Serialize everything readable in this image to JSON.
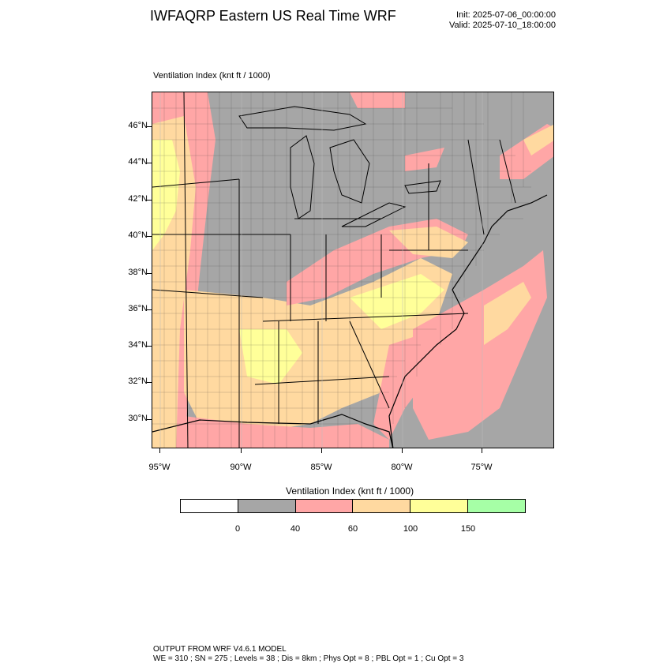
{
  "title": "IWFAQRP Eastern US Real Time WRF",
  "init": "Init: 2025-07-06_00:00:00",
  "valid": "Valid: 2025-07-10_18:00:00",
  "panel_title": "Ventilation Index   (knt ft / 1000)",
  "lat_labels": [
    "46°N",
    "44°N",
    "42°N",
    "40°N",
    "38°N",
    "36°N",
    "34°N",
    "32°N",
    "30°N"
  ],
  "lon_labels": [
    "95°W",
    "90°W",
    "85°W",
    "80°W",
    "75°W"
  ],
  "legend": {
    "title": "Ventilation Index  (knt ft / 1000)",
    "colors": [
      "#ffffff",
      "#a6a6a6",
      "#ffa6a6",
      "#ffd9a0",
      "#ffff99",
      "#a6ffa6"
    ],
    "labels": [
      "0",
      "40",
      "60",
      "100",
      "150"
    ]
  },
  "footer": {
    "line1": "OUTPUT FROM WRF V4.6.1 MODEL",
    "line2": "WE = 310 ; SN = 275 ; Levels = 38 ; Dis = 8km ; Phys Opt = 8 ; PBL Opt = 1 ; Cu Opt = 3"
  }
}
